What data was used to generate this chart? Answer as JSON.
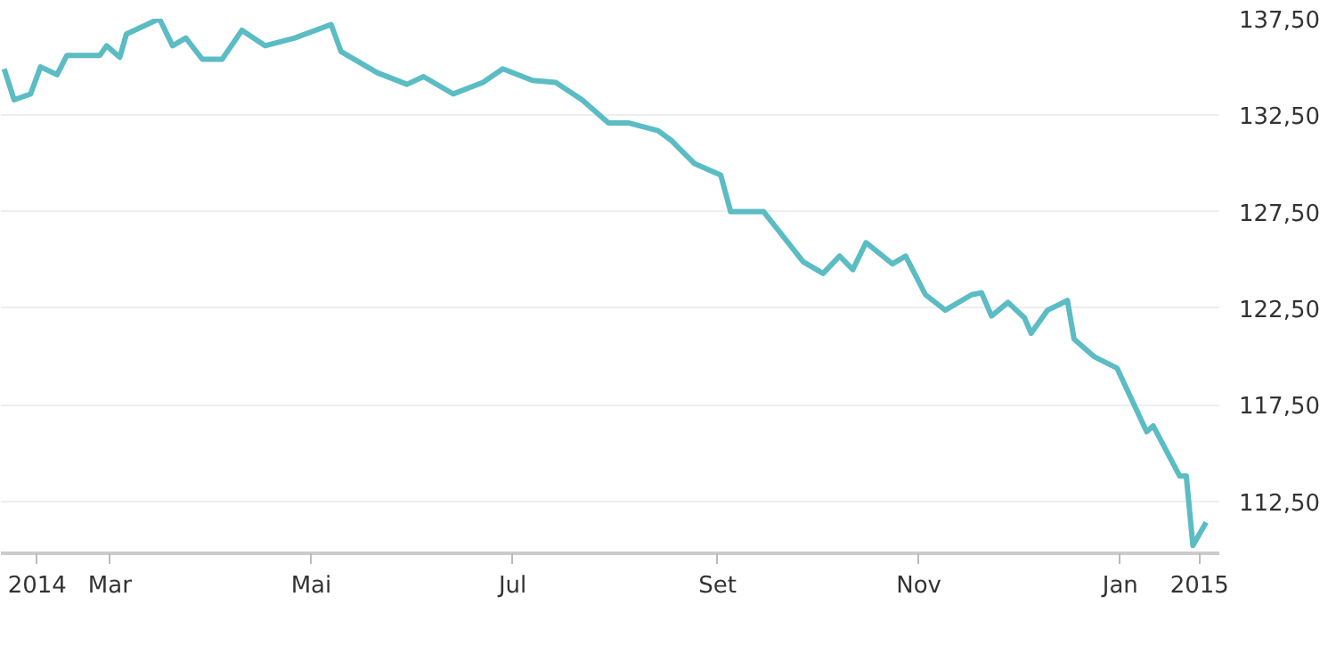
{
  "chart_data": {
    "type": "line",
    "x": [
      "2014-01-28",
      "2014-01-31",
      "2014-02-05",
      "2014-02-08",
      "2014-02-13",
      "2014-02-16",
      "2014-02-26",
      "2014-02-28",
      "2014-03-04",
      "2014-03-06",
      "2014-03-16",
      "2014-03-20",
      "2014-03-24",
      "2014-03-29",
      "2014-04-04",
      "2014-04-10",
      "2014-04-17",
      "2014-04-26",
      "2014-05-07",
      "2014-05-10",
      "2014-05-21",
      "2014-05-30",
      "2014-06-04",
      "2014-06-13",
      "2014-06-22",
      "2014-06-28",
      "2014-07-07",
      "2014-07-14",
      "2014-07-22",
      "2014-07-30",
      "2014-08-05",
      "2014-08-14",
      "2014-08-18",
      "2014-08-25",
      "2014-09-02",
      "2014-09-05",
      "2014-09-15",
      "2014-09-27",
      "2014-10-03",
      "2014-10-08",
      "2014-10-12",
      "2014-10-16",
      "2014-10-24",
      "2014-10-28",
      "2014-11-03",
      "2014-11-09",
      "2014-11-17",
      "2014-11-20",
      "2014-11-23",
      "2014-11-28",
      "2014-12-03",
      "2014-12-05",
      "2014-12-10",
      "2014-12-16",
      "2014-12-18",
      "2014-12-24",
      "2014-12-31",
      "2015-01-09",
      "2015-01-11",
      "2015-01-19",
      "2015-01-21",
      "2015-01-23",
      "2015-01-27"
    ],
    "series": [
      {
        "color": "#5bbcc4",
        "values": [
          134.9,
          133.3,
          133.6,
          135.0,
          134.6,
          135.6,
          135.6,
          136.1,
          135.5,
          136.7,
          137.5,
          136.1,
          136.5,
          135.4,
          135.4,
          136.9,
          136.1,
          136.5,
          137.2,
          135.8,
          134.7,
          134.1,
          134.5,
          133.6,
          134.2,
          134.9,
          134.3,
          134.2,
          133.3,
          132.1,
          132.1,
          131.7,
          131.2,
          130.0,
          129.4,
          127.5,
          127.5,
          124.9,
          124.3,
          125.2,
          124.5,
          125.9,
          124.8,
          125.2,
          123.2,
          122.4,
          123.2,
          123.3,
          122.1,
          122.8,
          122.0,
          121.2,
          122.4,
          122.9,
          120.9,
          120.0,
          119.4,
          116.1,
          116.4,
          113.8,
          113.8,
          110.2,
          111.4
        ]
      }
    ],
    "xlim": [
      "2014-01-27",
      "2015-01-31"
    ],
    "xticks": [
      {
        "value": "2014-02-07",
        "label": "2014"
      },
      {
        "value": "2014-03-01",
        "label": "Mar"
      },
      {
        "value": "2014-05-01",
        "label": "Mai"
      },
      {
        "value": "2014-07-01",
        "label": "Jul"
      },
      {
        "value": "2014-09-01",
        "label": "Set"
      },
      {
        "value": "2014-11-01",
        "label": "Nov"
      },
      {
        "value": "2015-01-01",
        "label": "Jan"
      },
      {
        "value": "2015-01-25",
        "label": "2015"
      }
    ],
    "ylim": [
      109.8,
      137.5
    ],
    "yticks": [
      {
        "value": 112.5,
        "label": "112,50"
      },
      {
        "value": 117.5,
        "label": "117,50"
      },
      {
        "value": 122.5,
        "label": "122,50"
      },
      {
        "value": 127.5,
        "label": "127,50"
      },
      {
        "value": 132.5,
        "label": "132,50"
      },
      {
        "value": 137.5,
        "label": "137,50"
      }
    ],
    "grid": "y"
  }
}
